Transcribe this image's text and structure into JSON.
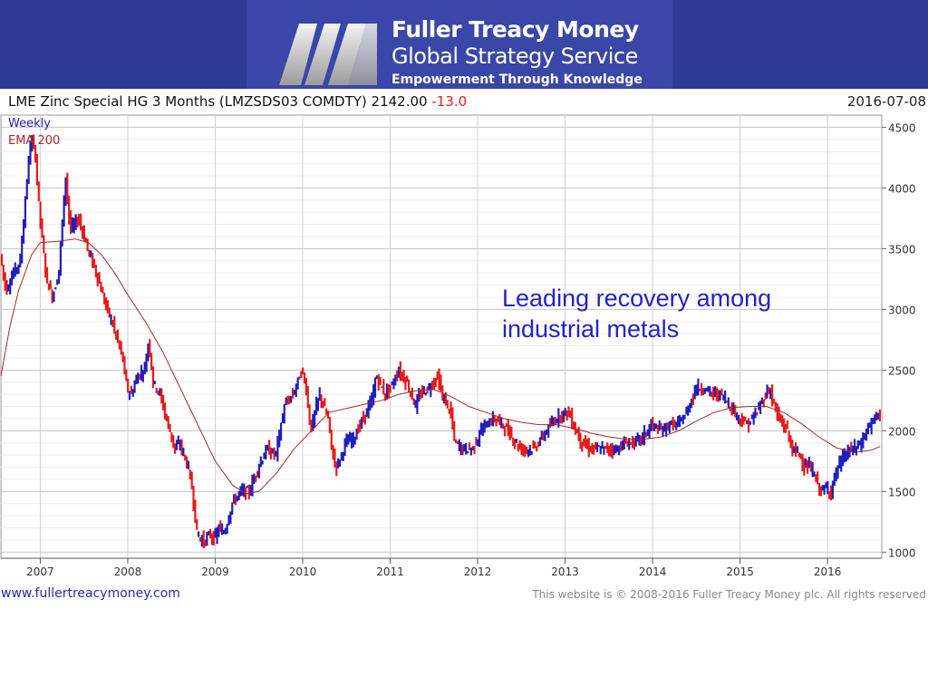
{
  "brand": {
    "name": "Fuller Treacy Money",
    "service": "Global Strategy Service",
    "tagline": "Empowerment Through Knowledge"
  },
  "header": {
    "instrument": "LME Zinc Special HG 3 Months",
    "ticker": "(LMZSDS03 COMDTY)",
    "price": "2142.00",
    "change": "-13.0",
    "date": "2016-07-08"
  },
  "annotation": {
    "line1": "Leading recovery among",
    "line2": "industrial metals"
  },
  "footer": {
    "url": "www.fullertreacymoney.com",
    "copyright": "This website is © 2008-2016 Fuller Treacy Money plc. All rights reserved"
  },
  "colors": {
    "up": "#1f1fbf",
    "down": "#e81a1a",
    "ema": "#a52a2a",
    "grid": "#c8c8c8",
    "banner": "#2f3a94"
  },
  "chart_data": {
    "type": "line",
    "title": "LME Zinc Special HG 3 Months (LMZSDS03 COMDTY) 2142.00 -13.0",
    "xlabel": "",
    "ylabel": "",
    "x_ticks": [
      "2007",
      "2008",
      "2009",
      "2010",
      "2011",
      "2012",
      "2013",
      "2014",
      "2015",
      "2016"
    ],
    "xlim": [
      2006.55,
      2016.62
    ],
    "y_ticks": [
      1000,
      1500,
      2000,
      2500,
      3000,
      3500,
      4000,
      4500
    ],
    "ylim": [
      950,
      4600
    ],
    "y_axis_side": "right",
    "grid": true,
    "legend": [
      "Weekly",
      "EMA 200"
    ],
    "legend_position": "top-left",
    "series": [
      {
        "name": "Weekly",
        "style": "weekly-bars",
        "points": [
          [
            2006.55,
            3450
          ],
          [
            2006.62,
            3150
          ],
          [
            2006.7,
            3300
          ],
          [
            2006.78,
            3400
          ],
          [
            2006.85,
            4000
          ],
          [
            2006.9,
            4400
          ],
          [
            2006.95,
            4300
          ],
          [
            2007.0,
            3800
          ],
          [
            2007.08,
            3250
          ],
          [
            2007.15,
            3100
          ],
          [
            2007.22,
            3300
          ],
          [
            2007.3,
            4100
          ],
          [
            2007.35,
            3650
          ],
          [
            2007.45,
            3750
          ],
          [
            2007.55,
            3500
          ],
          [
            2007.65,
            3300
          ],
          [
            2007.75,
            3050
          ],
          [
            2007.85,
            2850
          ],
          [
            2007.95,
            2600
          ],
          [
            2008.0,
            2350
          ],
          [
            2008.05,
            2300
          ],
          [
            2008.12,
            2450
          ],
          [
            2008.2,
            2500
          ],
          [
            2008.25,
            2750
          ],
          [
            2008.3,
            2400
          ],
          [
            2008.38,
            2300
          ],
          [
            2008.45,
            2100
          ],
          [
            2008.55,
            1850
          ],
          [
            2008.6,
            1900
          ],
          [
            2008.7,
            1700
          ],
          [
            2008.75,
            1500
          ],
          [
            2008.8,
            1150
          ],
          [
            2008.88,
            1080
          ],
          [
            2008.95,
            1150
          ],
          [
            2009.0,
            1100
          ],
          [
            2009.05,
            1200
          ],
          [
            2009.1,
            1150
          ],
          [
            2009.15,
            1250
          ],
          [
            2009.2,
            1400
          ],
          [
            2009.3,
            1500
          ],
          [
            2009.4,
            1500
          ],
          [
            2009.5,
            1700
          ],
          [
            2009.6,
            1850
          ],
          [
            2009.7,
            1800
          ],
          [
            2009.8,
            2200
          ],
          [
            2009.9,
            2300
          ],
          [
            2010.0,
            2500
          ],
          [
            2010.05,
            2350
          ],
          [
            2010.1,
            2000
          ],
          [
            2010.2,
            2300
          ],
          [
            2010.3,
            2100
          ],
          [
            2010.35,
            1800
          ],
          [
            2010.4,
            1700
          ],
          [
            2010.5,
            1900
          ],
          [
            2010.6,
            1950
          ],
          [
            2010.7,
            2100
          ],
          [
            2010.8,
            2250
          ],
          [
            2010.85,
            2450
          ],
          [
            2010.95,
            2300
          ],
          [
            2011.05,
            2400
          ],
          [
            2011.1,
            2500
          ],
          [
            2011.2,
            2400
          ],
          [
            2011.25,
            2300
          ],
          [
            2011.3,
            2200
          ],
          [
            2011.35,
            2300
          ],
          [
            2011.45,
            2350
          ],
          [
            2011.55,
            2450
          ],
          [
            2011.6,
            2300
          ],
          [
            2011.7,
            2150
          ],
          [
            2011.75,
            1900
          ],
          [
            2011.85,
            1850
          ],
          [
            2011.95,
            1850
          ],
          [
            2012.05,
            2000
          ],
          [
            2012.1,
            2050
          ],
          [
            2012.2,
            2100
          ],
          [
            2012.3,
            2050
          ],
          [
            2012.4,
            1950
          ],
          [
            2012.5,
            1850
          ],
          [
            2012.55,
            1850
          ],
          [
            2012.65,
            1850
          ],
          [
            2012.7,
            1900
          ],
          [
            2012.8,
            2000
          ],
          [
            2012.9,
            2100
          ],
          [
            2013.0,
            2150
          ],
          [
            2013.05,
            2150
          ],
          [
            2013.1,
            2050
          ],
          [
            2013.2,
            1900
          ],
          [
            2013.3,
            1850
          ],
          [
            2013.4,
            1850
          ],
          [
            2013.5,
            1850
          ],
          [
            2013.6,
            1850
          ],
          [
            2013.7,
            1900
          ],
          [
            2013.8,
            1900
          ],
          [
            2013.9,
            1950
          ],
          [
            2014.0,
            2050
          ],
          [
            2014.1,
            2000
          ],
          [
            2014.2,
            2050
          ],
          [
            2014.3,
            2050
          ],
          [
            2014.4,
            2150
          ],
          [
            2014.5,
            2350
          ],
          [
            2014.6,
            2350
          ],
          [
            2014.7,
            2300
          ],
          [
            2014.8,
            2300
          ],
          [
            2014.9,
            2200
          ],
          [
            2015.0,
            2100
          ],
          [
            2015.1,
            2050
          ],
          [
            2015.2,
            2150
          ],
          [
            2015.3,
            2300
          ],
          [
            2015.35,
            2350
          ],
          [
            2015.4,
            2200
          ],
          [
            2015.45,
            2100
          ],
          [
            2015.5,
            2050
          ],
          [
            2015.55,
            2000
          ],
          [
            2015.6,
            1850
          ],
          [
            2015.7,
            1800
          ],
          [
            2015.75,
            1700
          ],
          [
            2015.8,
            1700
          ],
          [
            2015.85,
            1650
          ],
          [
            2015.9,
            1550
          ],
          [
            2015.95,
            1500
          ],
          [
            2016.0,
            1530
          ],
          [
            2016.05,
            1500
          ],
          [
            2016.1,
            1650
          ],
          [
            2016.2,
            1800
          ],
          [
            2016.3,
            1850
          ],
          [
            2016.4,
            1900
          ],
          [
            2016.45,
            2000
          ],
          [
            2016.5,
            2050
          ],
          [
            2016.55,
            2100
          ],
          [
            2016.6,
            2150
          ]
        ]
      },
      {
        "name": "EMA 200",
        "style": "line",
        "points": [
          [
            2006.55,
            2450
          ],
          [
            2006.65,
            2850
          ],
          [
            2006.75,
            3150
          ],
          [
            2006.9,
            3450
          ],
          [
            2007.0,
            3550
          ],
          [
            2007.2,
            3560
          ],
          [
            2007.4,
            3580
          ],
          [
            2007.55,
            3550
          ],
          [
            2007.7,
            3450
          ],
          [
            2007.85,
            3300
          ],
          [
            2008.0,
            3120
          ],
          [
            2008.2,
            2900
          ],
          [
            2008.4,
            2650
          ],
          [
            2008.6,
            2350
          ],
          [
            2008.8,
            2050
          ],
          [
            2009.0,
            1750
          ],
          [
            2009.2,
            1550
          ],
          [
            2009.35,
            1480
          ],
          [
            2009.5,
            1500
          ],
          [
            2009.7,
            1650
          ],
          [
            2009.9,
            1850
          ],
          [
            2010.1,
            2000
          ],
          [
            2010.3,
            2150
          ],
          [
            2010.6,
            2200
          ],
          [
            2010.9,
            2250
          ],
          [
            2011.1,
            2300
          ],
          [
            2011.3,
            2330
          ],
          [
            2011.5,
            2340
          ],
          [
            2011.7,
            2280
          ],
          [
            2011.9,
            2200
          ],
          [
            2012.1,
            2150
          ],
          [
            2012.3,
            2100
          ],
          [
            2012.5,
            2070
          ],
          [
            2012.7,
            2050
          ],
          [
            2012.9,
            2050
          ],
          [
            2013.1,
            2020
          ],
          [
            2013.3,
            1980
          ],
          [
            2013.5,
            1950
          ],
          [
            2013.7,
            1930
          ],
          [
            2013.9,
            1930
          ],
          [
            2014.1,
            1950
          ],
          [
            2014.3,
            2000
          ],
          [
            2014.5,
            2080
          ],
          [
            2014.7,
            2150
          ],
          [
            2014.9,
            2190
          ],
          [
            2015.1,
            2200
          ],
          [
            2015.3,
            2200
          ],
          [
            2015.5,
            2150
          ],
          [
            2015.7,
            2060
          ],
          [
            2015.9,
            1950
          ],
          [
            2016.1,
            1860
          ],
          [
            2016.3,
            1820
          ],
          [
            2016.5,
            1840
          ],
          [
            2016.6,
            1870
          ]
        ]
      }
    ]
  }
}
